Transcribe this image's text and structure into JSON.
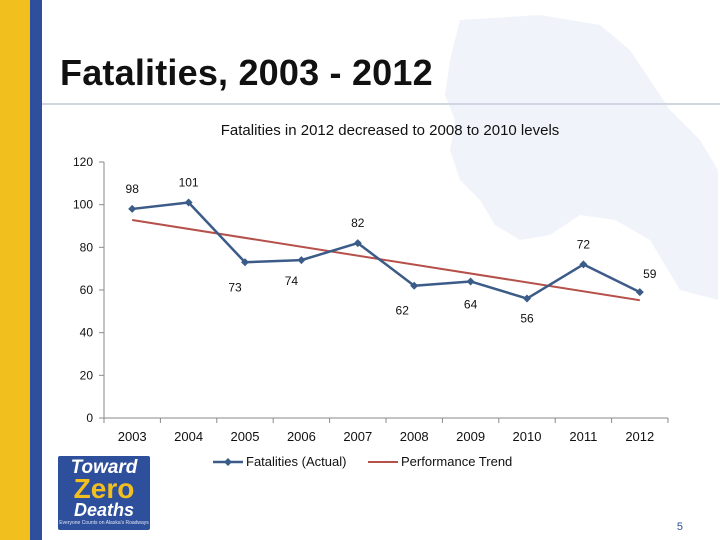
{
  "slide": {
    "title": "Fatalities, 2003 - 2012",
    "page_number": "5",
    "logo": {
      "line1": "Toward",
      "line2": "Zero",
      "line3": "Deaths",
      "tagline": "Everyone Counts on Alaska's Roadways"
    }
  },
  "colors": {
    "accent_gold": "#f2c01e",
    "accent_blue": "#2e4f9b",
    "series_actual": "#3b5b88",
    "series_trend": "#b5504a"
  },
  "chart_data": {
    "type": "line",
    "title": "Fatalities in 2012 decreased to 2008 to 2010 levels",
    "categories": [
      "2003",
      "2004",
      "2005",
      "2006",
      "2007",
      "2008",
      "2009",
      "2010",
      "2011",
      "2012"
    ],
    "series": [
      {
        "name": "Fatalities (Actual)",
        "values": [
          98,
          101,
          73,
          74,
          82,
          62,
          64,
          56,
          72,
          59
        ],
        "labels": [
          "98",
          "101",
          "73",
          "74",
          "82",
          "62",
          "64",
          "56",
          "72",
          "59"
        ]
      },
      {
        "name": "Performance Trend",
        "start": 92.8,
        "end": 55.2
      }
    ],
    "ylim": [
      0,
      120
    ],
    "yticks": [
      0,
      20,
      40,
      60,
      80,
      100,
      120
    ],
    "ytick_labels": [
      "0",
      "20",
      "40",
      "60",
      "80",
      "100",
      "120"
    ],
    "xlabel": "",
    "ylabel": "",
    "legend_position": "bottom",
    "grid": false
  }
}
